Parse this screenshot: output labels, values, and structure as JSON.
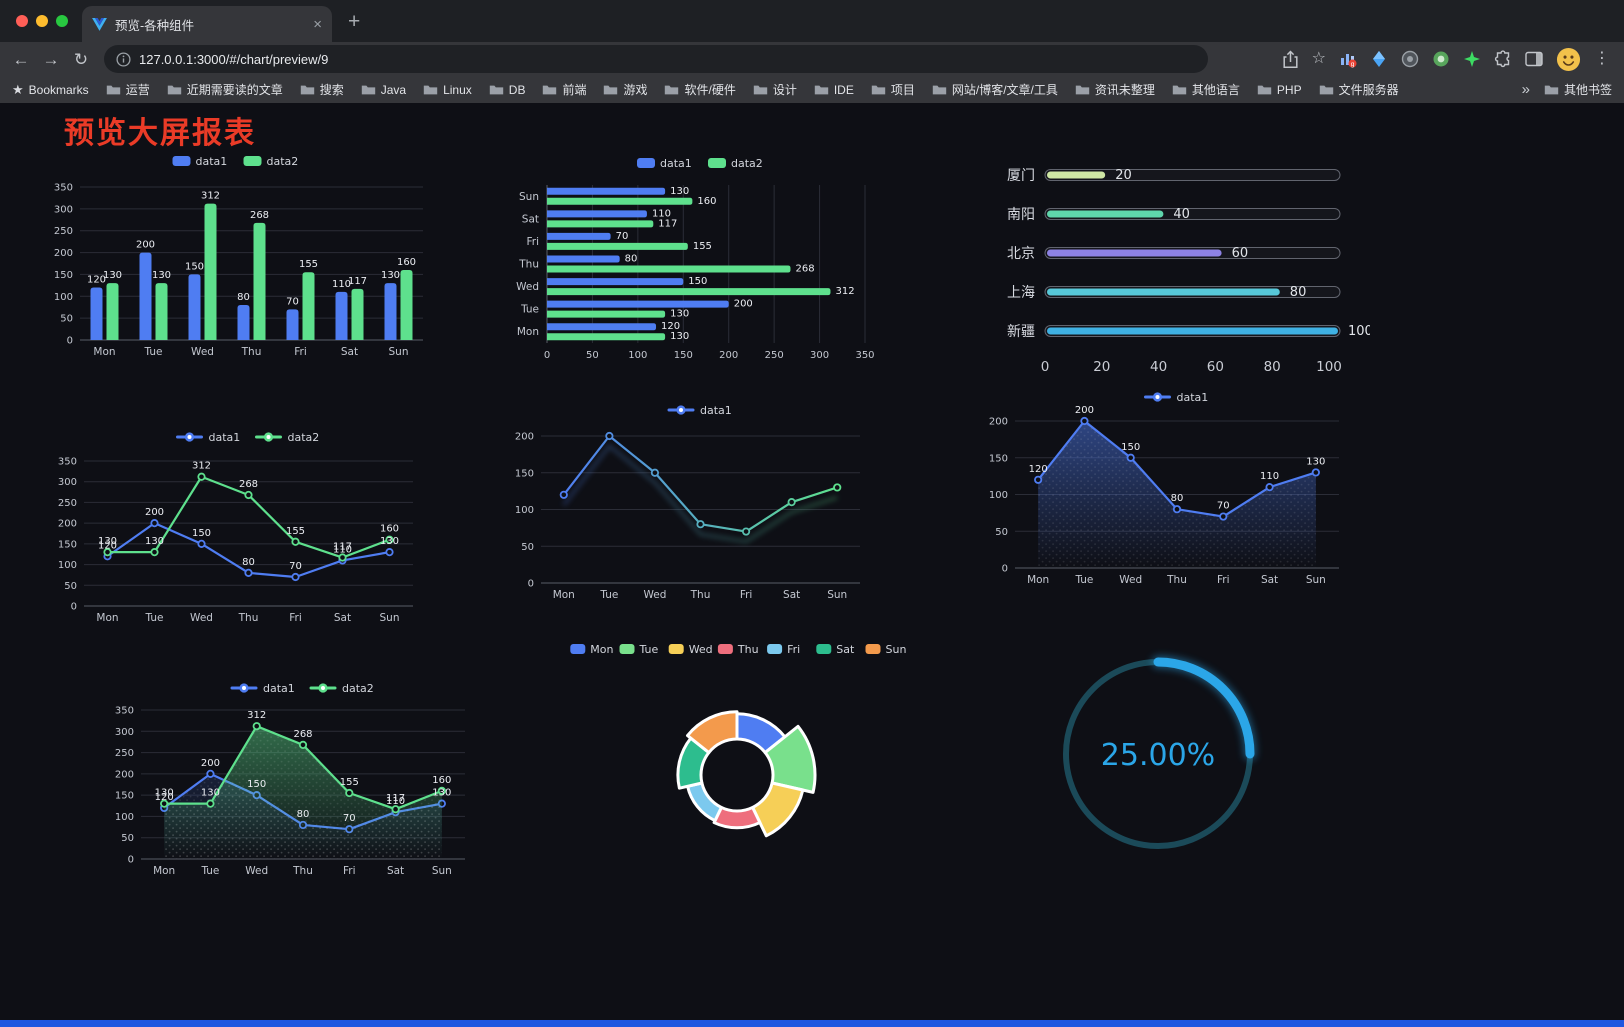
{
  "browser": {
    "tab": {
      "title": "预览-各种组件",
      "close_label": "×"
    },
    "new_tab_label": "+",
    "nav": {
      "back": "←",
      "forward": "→",
      "reload": "↻"
    },
    "address": {
      "url": "127.0.0.1:3000/#/chart/preview/9"
    },
    "bookmarks_bar": {
      "star_label": "Bookmarks",
      "folders": [
        "运营",
        "近期需要读的文章",
        "搜索",
        "Java",
        "Linux",
        "DB",
        "前端",
        "游戏",
        "软件/硬件",
        "设计",
        "IDE",
        "项目",
        "网站/博客/文章/工具",
        "资讯未整理",
        "其他语言",
        "PHP",
        "文件服务器"
      ],
      "overflow": "»",
      "other": "其他书签"
    },
    "menu_dots": "⋮"
  },
  "page": {
    "title": "预览大屏报表",
    "title_color": "#ea3b27",
    "background": "#0e0f15"
  },
  "chart_data": [
    {
      "id": "bar-grouped",
      "type": "bar",
      "categories": [
        "Mon",
        "Tue",
        "Wed",
        "Thu",
        "Fri",
        "Sat",
        "Sun"
      ],
      "series": [
        {
          "name": "data1",
          "color": "#4f7df2",
          "values": [
            120,
            200,
            150,
            80,
            70,
            110,
            130
          ]
        },
        {
          "name": "data2",
          "color": "#5ee08d",
          "values": [
            130,
            130,
            312,
            268,
            155,
            117,
            160
          ]
        }
      ],
      "ylim": [
        0,
        350
      ],
      "yticks": [
        0,
        50,
        100,
        150,
        200,
        250,
        300,
        350
      ],
      "legend_position": "top",
      "grid": true,
      "value_labels": true
    },
    {
      "id": "bar-horizontal",
      "type": "bar-horizontal",
      "categories": [
        "Mon",
        "Tue",
        "Wed",
        "Thu",
        "Fri",
        "Sat",
        "Sun"
      ],
      "series": [
        {
          "name": "data1",
          "color": "#4f7df2",
          "values": [
            120,
            200,
            150,
            80,
            70,
            110,
            130
          ]
        },
        {
          "name": "data2",
          "color": "#5ee08d",
          "values": [
            130,
            130,
            312,
            268,
            155,
            117,
            160
          ]
        }
      ],
      "xlim": [
        0,
        350
      ],
      "xticks": [
        0,
        50,
        100,
        150,
        200,
        250,
        300,
        350
      ],
      "legend_position": "top",
      "value_labels": true
    },
    {
      "id": "progress-list",
      "type": "progress",
      "max": 100,
      "xticks": [
        0,
        20,
        40,
        60,
        80,
        100
      ],
      "rows": [
        {
          "label": "厦门",
          "value": 20,
          "color": "#cfe7a4"
        },
        {
          "label": "南阳",
          "value": 40,
          "color": "#5fd6ac"
        },
        {
          "label": "北京",
          "value": 60,
          "color": "#8d82e4"
        },
        {
          "label": "上海",
          "value": 80,
          "color": "#57c8d9"
        },
        {
          "label": "新疆",
          "value": 100,
          "color": "#3fb1e3"
        }
      ]
    },
    {
      "id": "line-two-series",
      "type": "line",
      "categories": [
        "Mon",
        "Tue",
        "Wed",
        "Thu",
        "Fri",
        "Sat",
        "Sun"
      ],
      "series": [
        {
          "name": "data1",
          "color": "#4f7df2",
          "values": [
            120,
            200,
            150,
            80,
            70,
            110,
            130
          ]
        },
        {
          "name": "data2",
          "color": "#5ee08d",
          "values": [
            130,
            130,
            312,
            268,
            155,
            117,
            160
          ]
        }
      ],
      "ylim": [
        0,
        350
      ],
      "yticks": [
        0,
        50,
        100,
        150,
        200,
        250,
        300,
        350
      ],
      "value_labels": true
    },
    {
      "id": "line-gradient",
      "type": "line",
      "categories": [
        "Mon",
        "Tue",
        "Wed",
        "Thu",
        "Fri",
        "Sat",
        "Sun"
      ],
      "series": [
        {
          "name": "data1",
          "color": "#4f7df2",
          "color_end": "#5ee08d",
          "shadow": true,
          "values": [
            120,
            200,
            150,
            80,
            70,
            110,
            130
          ]
        }
      ],
      "ylim": [
        0,
        200
      ],
      "yticks": [
        0,
        50,
        100,
        150,
        200
      ],
      "value_labels": false
    },
    {
      "id": "line-area",
      "type": "line",
      "categories": [
        "Mon",
        "Tue",
        "Wed",
        "Thu",
        "Fri",
        "Sat",
        "Sun"
      ],
      "series": [
        {
          "name": "data1",
          "color": "#4f7df2",
          "area": true,
          "area_opacity": 0.5,
          "values": [
            120,
            200,
            150,
            80,
            70,
            110,
            130
          ]
        }
      ],
      "ylim": [
        0,
        200
      ],
      "yticks": [
        0,
        50,
        100,
        150,
        200
      ],
      "value_labels": true
    },
    {
      "id": "line-two-series-area",
      "type": "line",
      "categories": [
        "Mon",
        "Tue",
        "Wed",
        "Thu",
        "Fri",
        "Sat",
        "Sun"
      ],
      "series": [
        {
          "name": "data1",
          "color": "#4f7df2",
          "area": true,
          "area_opacity": 0.16,
          "values": [
            120,
            200,
            150,
            80,
            70,
            110,
            130
          ]
        },
        {
          "name": "data2",
          "color": "#5ee08d",
          "area": true,
          "area_opacity": 0.45,
          "values": [
            130,
            130,
            312,
            268,
            155,
            117,
            160
          ]
        }
      ],
      "ylim": [
        0,
        350
      ],
      "yticks": [
        0,
        50,
        100,
        150,
        200,
        250,
        300,
        350
      ],
      "value_labels": true
    },
    {
      "id": "rose-donut",
      "type": "pie",
      "rose": true,
      "items": [
        {
          "name": "Mon",
          "value": 120,
          "color": "#4f7df2"
        },
        {
          "name": "Tue",
          "value": 200,
          "color": "#79e08c"
        },
        {
          "name": "Wed",
          "value": 150,
          "color": "#f6cf57"
        },
        {
          "name": "Thu",
          "value": 80,
          "color": "#ee6e7d"
        },
        {
          "name": "Fri",
          "value": 70,
          "color": "#7cc9ee"
        },
        {
          "name": "Sat",
          "value": 110,
          "color": "#2dbd8e"
        },
        {
          "name": "Sun",
          "value": 130,
          "color": "#f39a4c"
        }
      ]
    },
    {
      "id": "gauge",
      "type": "gauge",
      "value": 25,
      "label": "25.00%",
      "color": "#2ba6e8",
      "track_color": "#1b4a59"
    }
  ]
}
